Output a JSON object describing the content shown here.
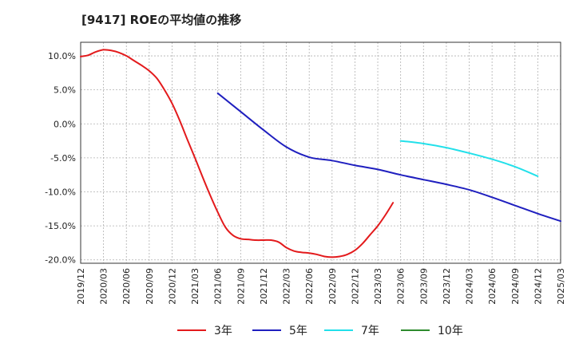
{
  "chart_data": {
    "type": "line",
    "title": "[9417]  ROEの平均値の推移",
    "xlabel": "",
    "ylabel": "",
    "ylim": [
      -20.5,
      12
    ],
    "yticks": [
      10.0,
      5.0,
      0.0,
      -5.0,
      -10.0,
      -15.0,
      -20.0
    ],
    "ytick_labels": [
      "10.0%",
      "5.0%",
      "0.0%",
      "-5.0%",
      "-10.0%",
      "-15.0%",
      "-20.0%"
    ],
    "xtick_labels": [
      "2019/12",
      "2020/03",
      "2020/06",
      "2020/09",
      "2020/12",
      "2021/03",
      "2021/06",
      "2021/09",
      "2021/12",
      "2022/03",
      "2022/06",
      "2022/09",
      "2022/12",
      "2023/03",
      "2023/06",
      "2023/09",
      "2023/12",
      "2024/03",
      "2024/06",
      "2024/09",
      "2024/12",
      "2025/03"
    ],
    "grid": true,
    "legend_position": "bottom",
    "series": [
      {
        "name": "3年",
        "color": "#e31a1c",
        "points": [
          [
            "2019/12",
            9.9
          ],
          [
            "2020/01",
            10.1
          ],
          [
            "2020/02",
            10.6
          ],
          [
            "2020/03",
            10.9
          ],
          [
            "2020/04",
            10.8
          ],
          [
            "2020/05",
            10.5
          ],
          [
            "2020/06",
            10.0
          ],
          [
            "2020/07",
            9.3
          ],
          [
            "2020/08",
            8.6
          ],
          [
            "2020/09",
            7.8
          ],
          [
            "2020/10",
            6.7
          ],
          [
            "2020/11",
            5.0
          ],
          [
            "2020/12",
            3.0
          ],
          [
            "2021/01",
            0.5
          ],
          [
            "2021/02",
            -2.3
          ],
          [
            "2021/03",
            -5.0
          ],
          [
            "2021/04",
            -7.8
          ],
          [
            "2021/05",
            -10.5
          ],
          [
            "2021/06",
            -13.0
          ],
          [
            "2021/07",
            -15.2
          ],
          [
            "2021/08",
            -16.4
          ],
          [
            "2021/09",
            -16.9
          ],
          [
            "2021/10",
            -17.0
          ],
          [
            "2021/11",
            -17.1
          ],
          [
            "2021/12",
            -17.1
          ],
          [
            "2022/01",
            -17.1
          ],
          [
            "2022/02",
            -17.4
          ],
          [
            "2022/03",
            -18.2
          ],
          [
            "2022/04",
            -18.7
          ],
          [
            "2022/05",
            -18.9
          ],
          [
            "2022/06",
            -19.0
          ],
          [
            "2022/07",
            -19.2
          ],
          [
            "2022/08",
            -19.5
          ],
          [
            "2022/09",
            -19.6
          ],
          [
            "2022/10",
            -19.5
          ],
          [
            "2022/11",
            -19.2
          ],
          [
            "2022/12",
            -18.6
          ],
          [
            "2023/01",
            -17.6
          ],
          [
            "2023/02",
            -16.3
          ],
          [
            "2023/03",
            -15.0
          ],
          [
            "2023/04",
            -13.4
          ],
          [
            "2023/05",
            -11.6
          ]
        ]
      },
      {
        "name": "5年",
        "color": "#1f1fbf",
        "points": [
          [
            "2021/06",
            4.5
          ],
          [
            "2021/09",
            1.8
          ],
          [
            "2021/12",
            -0.9
          ],
          [
            "2022/03",
            -3.4
          ],
          [
            "2022/06",
            -4.9
          ],
          [
            "2022/09",
            -5.4
          ],
          [
            "2022/12",
            -6.1
          ],
          [
            "2023/03",
            -6.7
          ],
          [
            "2023/06",
            -7.5
          ],
          [
            "2023/09",
            -8.2
          ],
          [
            "2023/12",
            -8.9
          ],
          [
            "2024/03",
            -9.7
          ],
          [
            "2024/06",
            -10.8
          ],
          [
            "2024/09",
            -12.0
          ],
          [
            "2024/12",
            -13.2
          ],
          [
            "2025/03",
            -14.3
          ]
        ]
      },
      {
        "name": "7年",
        "color": "#22e0ea",
        "points": [
          [
            "2023/06",
            -2.5
          ],
          [
            "2023/09",
            -2.9
          ],
          [
            "2023/12",
            -3.5
          ],
          [
            "2024/03",
            -4.3
          ],
          [
            "2024/06",
            -5.2
          ],
          [
            "2024/09",
            -6.3
          ],
          [
            "2024/12",
            -7.7
          ]
        ]
      },
      {
        "name": "10年",
        "color": "#2e8b2e",
        "points": []
      }
    ]
  }
}
